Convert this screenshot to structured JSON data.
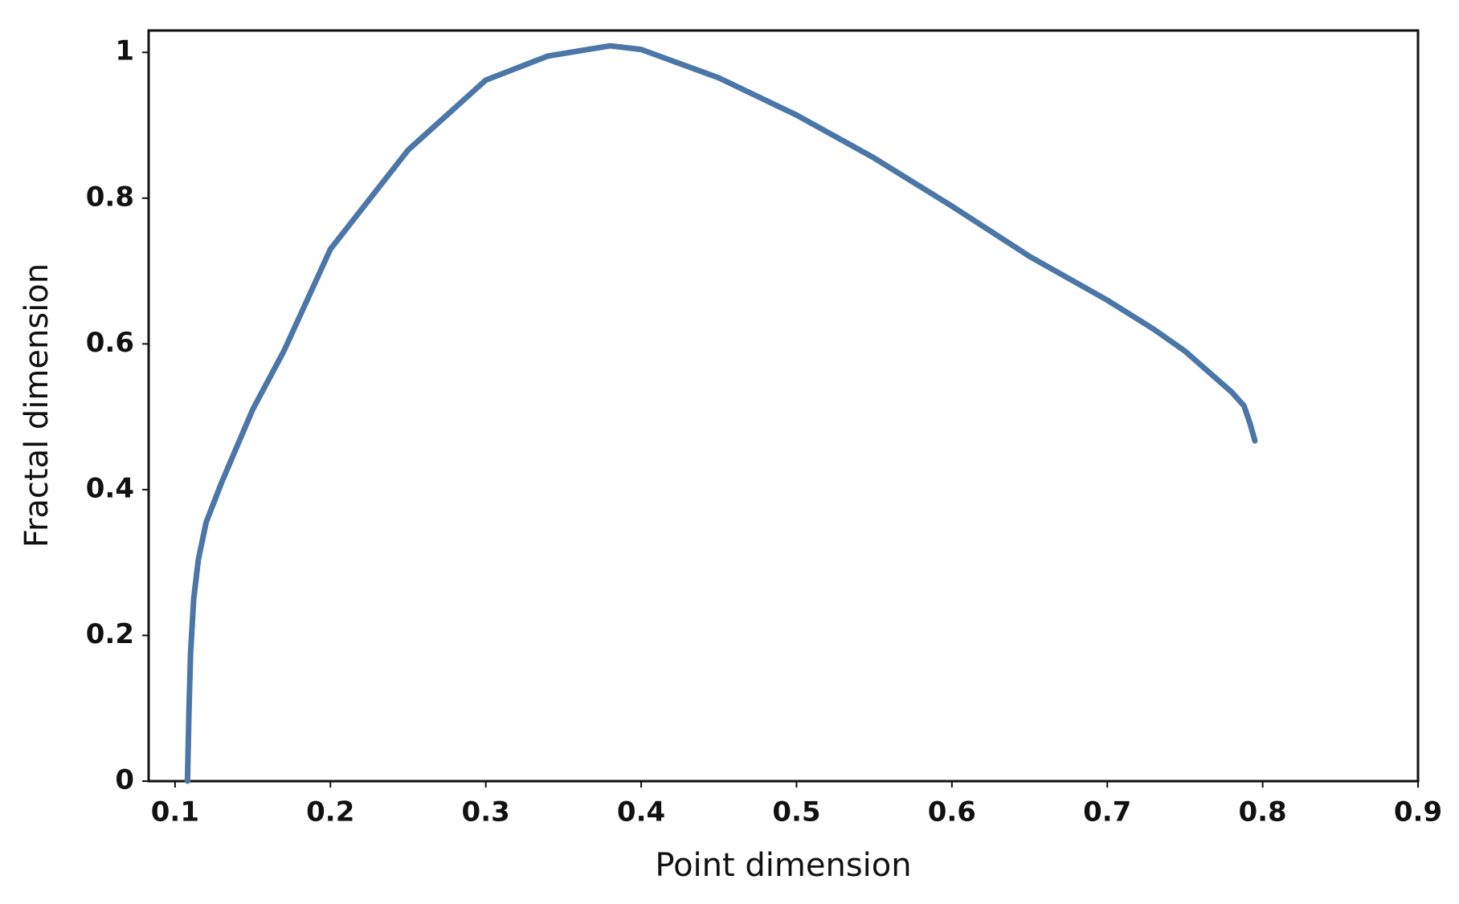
{
  "chart_data": {
    "type": "line",
    "x_label": "Point dimension",
    "y_label": "Fractal dimension",
    "xlim": [
      0.083,
      0.9
    ],
    "ylim": [
      0,
      1.03
    ],
    "xticks": [
      0.1,
      0.2,
      0.3,
      0.4,
      0.5,
      0.6,
      0.7,
      0.8,
      0.9
    ],
    "yticks": [
      0,
      0.2,
      0.4,
      0.6,
      0.8,
      1
    ],
    "series": [
      {
        "color": "#4a77a8",
        "x": [
          0.108,
          0.109,
          0.11,
          0.112,
          0.115,
          0.12,
          0.13,
          0.15,
          0.17,
          0.2,
          0.25,
          0.3,
          0.34,
          0.38,
          0.4,
          0.45,
          0.5,
          0.55,
          0.6,
          0.65,
          0.7,
          0.73,
          0.75,
          0.78,
          0.788,
          0.792,
          0.795
        ],
        "values": [
          0,
          0.1,
          0.176,
          0.25,
          0.304,
          0.355,
          0.41,
          0.51,
          0.59,
          0.73,
          0.866,
          0.962,
          0.995,
          1.009,
          1.004,
          0.965,
          0.914,
          0.855,
          0.789,
          0.72,
          0.66,
          0.62,
          0.59,
          0.534,
          0.515,
          0.49,
          0.467
        ]
      }
    ]
  }
}
